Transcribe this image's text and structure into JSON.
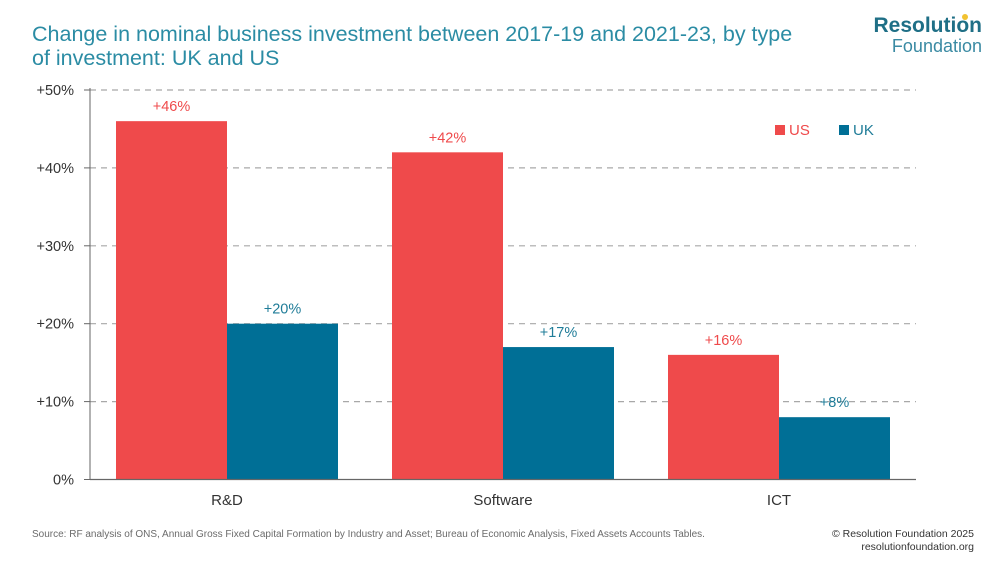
{
  "header": {
    "title": "Change in nominal business investment between 2017-19 and 2021-23, by type of investment: UK and US"
  },
  "brand": {
    "line1": "Resolution",
    "line2": "Foundation"
  },
  "footer": {
    "source": "Source: RF analysis of ONS, Annual Gross Fixed Capital Formation by Industry and Asset; Bureau of Economic Analysis, Fixed Assets Accounts Tables.",
    "copyright": "© Resolution Foundation 2025",
    "website": "resolutionfoundation.org"
  },
  "chart_data": {
    "type": "bar",
    "title": "Change in nominal business investment between 2017-19 and 2021-23, by type of investment: UK and US",
    "categories": [
      "R&D",
      "Software",
      "ICT"
    ],
    "series": [
      {
        "name": "US",
        "values": [
          46,
          42,
          16
        ],
        "labels": [
          "+46%",
          "+42%",
          "+16%"
        ],
        "color": "#ef4a4b",
        "label_color": "#ef4a4b"
      },
      {
        "name": "UK",
        "values": [
          20,
          17,
          8
        ],
        "labels": [
          "+20%",
          "+17%",
          "+8%"
        ],
        "color": "#006f96",
        "label_color": "#1f7c98"
      }
    ],
    "ylim": [
      0,
      50
    ],
    "yticks": [
      0,
      10,
      20,
      30,
      40,
      50
    ],
    "ytick_labels": [
      "0%",
      "+10%",
      "+20%",
      "+30%",
      "+40%",
      "+50%"
    ],
    "xlabel": "",
    "ylabel": "",
    "grid": true,
    "legend_position": "top-right",
    "colors": {
      "axis": "#666666",
      "grid": "#a8a8a8",
      "text": "#333333"
    }
  }
}
